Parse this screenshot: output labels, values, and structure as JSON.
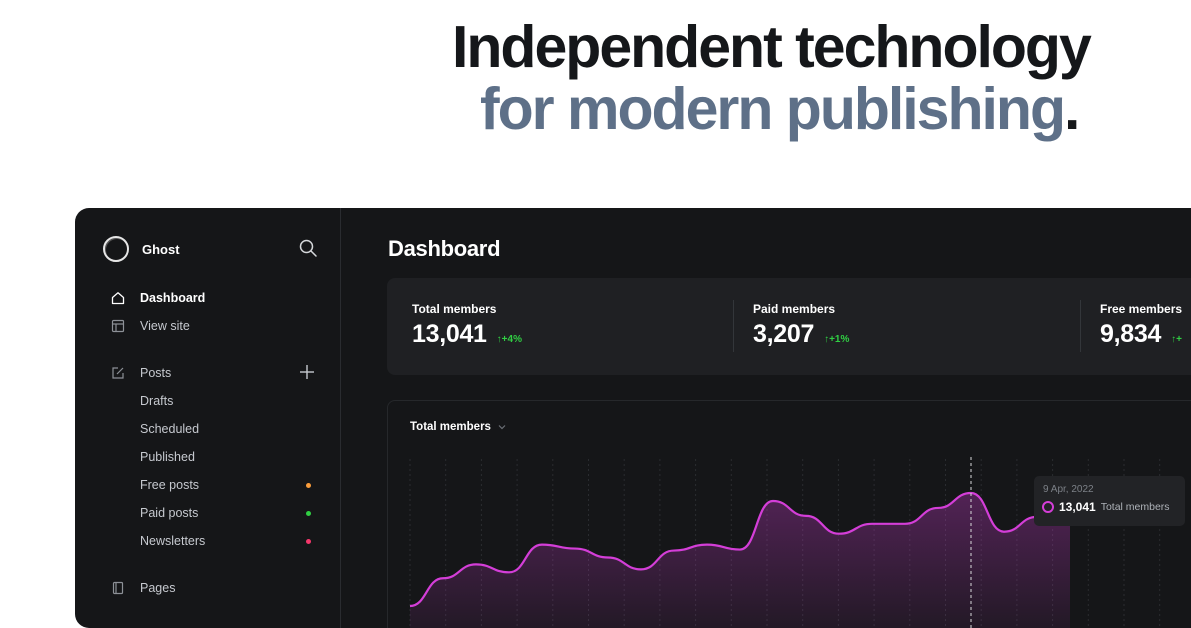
{
  "hero": {
    "line1": "Independent technology",
    "line2": "for modern publishing",
    "line2_suffix": "."
  },
  "sidebar": {
    "brand": "Ghost",
    "nav": [
      {
        "label": "Dashboard",
        "icon": "home-icon"
      },
      {
        "label": "View site",
        "icon": "layout-icon"
      },
      {
        "label": "Posts",
        "icon": "edit-icon"
      },
      {
        "label": "Pages",
        "icon": "page-icon"
      }
    ],
    "post_filters": [
      {
        "label": "Drafts"
      },
      {
        "label": "Scheduled"
      },
      {
        "label": "Published"
      },
      {
        "label": "Free posts",
        "dot_color": "#fb9d3b"
      },
      {
        "label": "Paid posts",
        "dot_color": "#30cf43"
      },
      {
        "label": "Newsletters",
        "dot_color": "#f5376b"
      }
    ]
  },
  "main": {
    "title": "Dashboard",
    "stats": [
      {
        "label": "Total members",
        "value": "13,041",
        "change": "+4%"
      },
      {
        "label": "Paid members",
        "value": "3,207",
        "change": "+1%"
      },
      {
        "label": "Free members",
        "value": "9,834",
        "change": "+"
      }
    ],
    "chart_card": {
      "selector_label": "Total members"
    },
    "tooltip": {
      "date": "9 Apr, 2022",
      "value": "13,041",
      "label": "Total members"
    }
  },
  "colors": {
    "accent_line": "#d43ed8",
    "positive": "#30cf43",
    "hero_dark": "#15171a",
    "hero_muted": "#5e7088"
  },
  "chart_data": {
    "type": "area",
    "title": "Total members",
    "series": [
      {
        "name": "Total members",
        "values": [
          11900,
          12180,
          12320,
          12240,
          12520,
          12480,
          12390,
          12270,
          12460,
          12520,
          12470,
          12960,
          12810,
          12630,
          12730,
          12730,
          12890,
          13041,
          12650,
          12800,
          12950
        ]
      }
    ],
    "grid": "vertical-dashed",
    "highlight": {
      "index": 17,
      "date": "9 Apr, 2022",
      "value": 13041
    }
  }
}
